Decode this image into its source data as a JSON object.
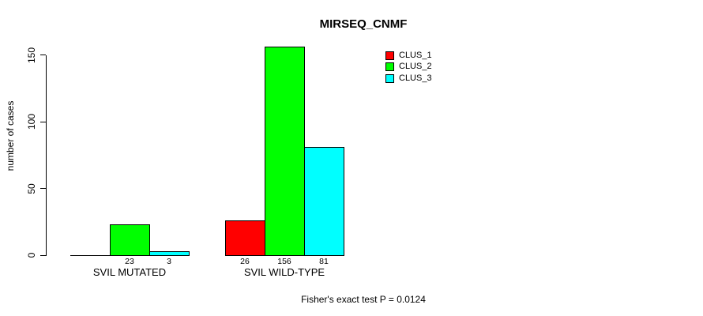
{
  "chart_data": {
    "type": "bar",
    "title": "MIRSEQ_CNMF",
    "ylabel": "number of cases",
    "xlabel": "",
    "yticks": [
      0,
      50,
      100,
      150
    ],
    "ylim": [
      0,
      156
    ],
    "grid": false,
    "legend_position": "top-right",
    "categories": [
      "SVIL MUTATED",
      "SVIL WILD-TYPE"
    ],
    "series": [
      {
        "name": "CLUS_1",
        "color": "#ff0000",
        "values": [
          0,
          26
        ]
      },
      {
        "name": "CLUS_2",
        "color": "#00ff00",
        "values": [
          23,
          156
        ]
      },
      {
        "name": "CLUS_3",
        "color": "#00ffff",
        "values": [
          3,
          81
        ]
      }
    ],
    "bar_labels": [
      [
        "",
        "23",
        "3"
      ],
      [
        "26",
        "156",
        "81"
      ]
    ],
    "annotation": "Fisher's exact test P = 0.0124",
    "axis_color": "#000000",
    "background_color": "#ffffff"
  }
}
